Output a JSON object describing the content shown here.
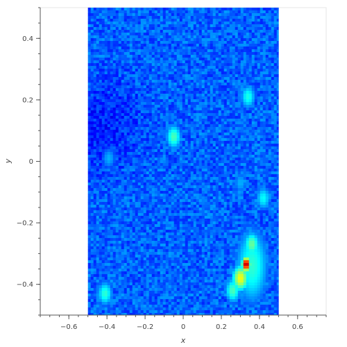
{
  "chart_data": {
    "type": "heatmap",
    "xlabel": "x",
    "ylabel": "y",
    "xlim": [
      -0.75,
      0.75
    ],
    "ylim": [
      -0.5,
      0.5
    ],
    "image_extent": {
      "x": [
        -0.5,
        0.5
      ],
      "y": [
        -0.5,
        0.5
      ]
    },
    "colormap": "jet",
    "x_ticks": [
      {
        "v": -0.6,
        "label": "−0.6"
      },
      {
        "v": -0.4,
        "label": "−0.4"
      },
      {
        "v": -0.2,
        "label": "−0.2"
      },
      {
        "v": 0,
        "label": "0"
      },
      {
        "v": 0.2,
        "label": "0.2"
      },
      {
        "v": 0.4,
        "label": "0.4"
      },
      {
        "v": 0.6,
        "label": "0.6"
      }
    ],
    "y_ticks": [
      {
        "v": 0.4,
        "label": "0.4"
      },
      {
        "v": 0.2,
        "label": "0.2"
      },
      {
        "v": 0,
        "label": "0"
      },
      {
        "v": -0.2,
        "label": "−0.2"
      },
      {
        "v": -0.4,
        "label": "−0.4"
      }
    ],
    "features": [
      {
        "x": 0.33,
        "y": -0.335,
        "value": 1.0
      },
      {
        "x": 0.3,
        "y": -0.38,
        "value": 0.62
      },
      {
        "x": 0.26,
        "y": -0.42,
        "value": 0.45
      },
      {
        "x": 0.36,
        "y": -0.27,
        "value": 0.48
      },
      {
        "x": 0.42,
        "y": -0.12,
        "value": 0.38
      },
      {
        "x": -0.05,
        "y": 0.08,
        "value": 0.45
      },
      {
        "x": 0.34,
        "y": 0.21,
        "value": 0.4
      },
      {
        "x": -0.41,
        "y": -0.43,
        "value": 0.42
      },
      {
        "x": -0.39,
        "y": 0.01,
        "value": 0.3
      },
      {
        "x": 0.3,
        "y": -0.07,
        "value": 0.3
      }
    ]
  }
}
